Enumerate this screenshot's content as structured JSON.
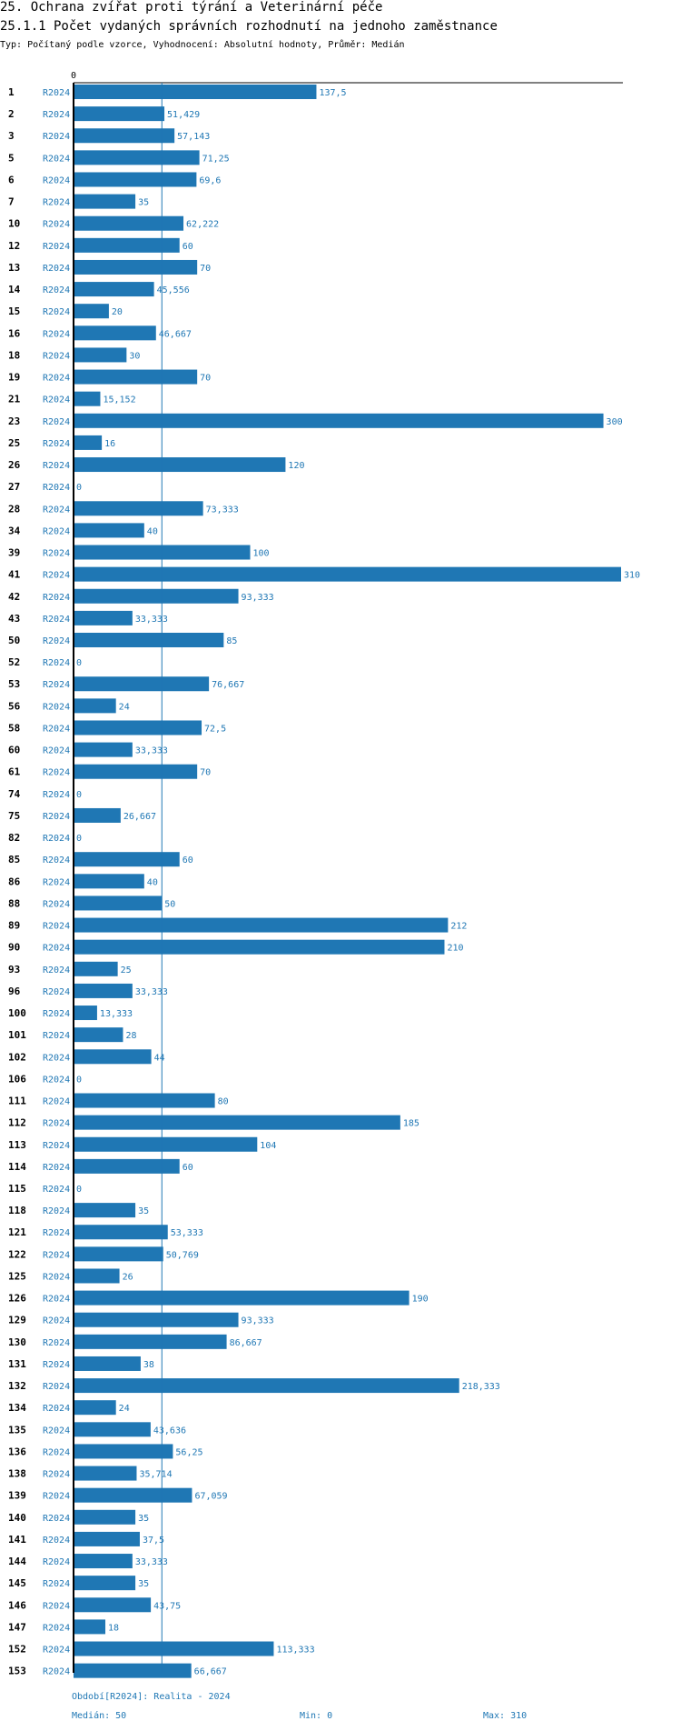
{
  "title_line1": "25. Ochrana zvířat proti týrání a Veterinární péče",
  "title_line2": "25.1.1 Počet vydaných správních rozhodnutí na jednoho zaměstnance",
  "subtitle": "Typ: Počítaný podle vzorce, Vyhodnocení: Absolutní hodnoty, Průměr: Medián",
  "footer": {
    "period": "Období[R2024]: Realita - 2024",
    "median": "Medián: 50",
    "min": "Min: 0",
    "max": "Max: 310"
  },
  "colors": {
    "bar": "#1f77b4",
    "median_line": "#1f77b4",
    "axis": "#000000"
  },
  "chart_data": {
    "type": "bar",
    "orientation": "horizontal",
    "x_tick_labels": [
      "0"
    ],
    "xlim": [
      0,
      310
    ],
    "median": 50,
    "series_label": "R2024",
    "rows": [
      {
        "id": "1",
        "value": 137.5,
        "label": "137,5"
      },
      {
        "id": "2",
        "value": 51.429,
        "label": "51,429"
      },
      {
        "id": "3",
        "value": 57.143,
        "label": "57,143"
      },
      {
        "id": "5",
        "value": 71.25,
        "label": "71,25"
      },
      {
        "id": "6",
        "value": 69.6,
        "label": "69,6"
      },
      {
        "id": "7",
        "value": 35,
        "label": "35"
      },
      {
        "id": "10",
        "value": 62.222,
        "label": "62,222"
      },
      {
        "id": "12",
        "value": 60,
        "label": "60"
      },
      {
        "id": "13",
        "value": 70,
        "label": "70"
      },
      {
        "id": "14",
        "value": 45.556,
        "label": "45,556"
      },
      {
        "id": "15",
        "value": 20,
        "label": "20"
      },
      {
        "id": "16",
        "value": 46.667,
        "label": "46,667"
      },
      {
        "id": "18",
        "value": 30,
        "label": "30"
      },
      {
        "id": "19",
        "value": 70,
        "label": "70"
      },
      {
        "id": "21",
        "value": 15.152,
        "label": "15,152"
      },
      {
        "id": "23",
        "value": 300,
        "label": "300"
      },
      {
        "id": "25",
        "value": 16,
        "label": "16"
      },
      {
        "id": "26",
        "value": 120,
        "label": "120"
      },
      {
        "id": "27",
        "value": 0,
        "label": "0"
      },
      {
        "id": "28",
        "value": 73.333,
        "label": "73,333"
      },
      {
        "id": "34",
        "value": 40,
        "label": "40"
      },
      {
        "id": "39",
        "value": 100,
        "label": "100"
      },
      {
        "id": "41",
        "value": 310,
        "label": "310"
      },
      {
        "id": "42",
        "value": 93.333,
        "label": "93,333"
      },
      {
        "id": "43",
        "value": 33.333,
        "label": "33,333"
      },
      {
        "id": "50",
        "value": 85,
        "label": "85"
      },
      {
        "id": "52",
        "value": 0,
        "label": "0"
      },
      {
        "id": "53",
        "value": 76.667,
        "label": "76,667"
      },
      {
        "id": "56",
        "value": 24,
        "label": "24"
      },
      {
        "id": "58",
        "value": 72.5,
        "label": "72,5"
      },
      {
        "id": "60",
        "value": 33.333,
        "label": "33,333"
      },
      {
        "id": "61",
        "value": 70,
        "label": "70"
      },
      {
        "id": "74",
        "value": 0,
        "label": "0"
      },
      {
        "id": "75",
        "value": 26.667,
        "label": "26,667"
      },
      {
        "id": "82",
        "value": 0,
        "label": "0"
      },
      {
        "id": "85",
        "value": 60,
        "label": "60"
      },
      {
        "id": "86",
        "value": 40,
        "label": "40"
      },
      {
        "id": "88",
        "value": 50,
        "label": "50"
      },
      {
        "id": "89",
        "value": 212,
        "label": "212"
      },
      {
        "id": "90",
        "value": 210,
        "label": "210"
      },
      {
        "id": "93",
        "value": 25,
        "label": "25"
      },
      {
        "id": "96",
        "value": 33.333,
        "label": "33,333"
      },
      {
        "id": "100",
        "value": 13.333,
        "label": "13,333"
      },
      {
        "id": "101",
        "value": 28,
        "label": "28"
      },
      {
        "id": "102",
        "value": 44,
        "label": "44"
      },
      {
        "id": "106",
        "value": 0,
        "label": "0"
      },
      {
        "id": "111",
        "value": 80,
        "label": "80"
      },
      {
        "id": "112",
        "value": 185,
        "label": "185"
      },
      {
        "id": "113",
        "value": 104,
        "label": "104"
      },
      {
        "id": "114",
        "value": 60,
        "label": "60"
      },
      {
        "id": "115",
        "value": 0,
        "label": "0"
      },
      {
        "id": "118",
        "value": 35,
        "label": "35"
      },
      {
        "id": "121",
        "value": 53.333,
        "label": "53,333"
      },
      {
        "id": "122",
        "value": 50.769,
        "label": "50,769"
      },
      {
        "id": "125",
        "value": 26,
        "label": "26"
      },
      {
        "id": "126",
        "value": 190,
        "label": "190"
      },
      {
        "id": "129",
        "value": 93.333,
        "label": "93,333"
      },
      {
        "id": "130",
        "value": 86.667,
        "label": "86,667"
      },
      {
        "id": "131",
        "value": 38,
        "label": "38"
      },
      {
        "id": "132",
        "value": 218.333,
        "label": "218,333"
      },
      {
        "id": "134",
        "value": 24,
        "label": "24"
      },
      {
        "id": "135",
        "value": 43.636,
        "label": "43,636"
      },
      {
        "id": "136",
        "value": 56.25,
        "label": "56,25"
      },
      {
        "id": "138",
        "value": 35.714,
        "label": "35,714"
      },
      {
        "id": "139",
        "value": 67.059,
        "label": "67,059"
      },
      {
        "id": "140",
        "value": 35,
        "label": "35"
      },
      {
        "id": "141",
        "value": 37.5,
        "label": "37,5"
      },
      {
        "id": "144",
        "value": 33.333,
        "label": "33,333"
      },
      {
        "id": "145",
        "value": 35,
        "label": "35"
      },
      {
        "id": "146",
        "value": 43.75,
        "label": "43,75"
      },
      {
        "id": "147",
        "value": 18,
        "label": "18"
      },
      {
        "id": "152",
        "value": 113.333,
        "label": "113,333"
      },
      {
        "id": "153",
        "value": 66.667,
        "label": "66,667"
      }
    ]
  }
}
